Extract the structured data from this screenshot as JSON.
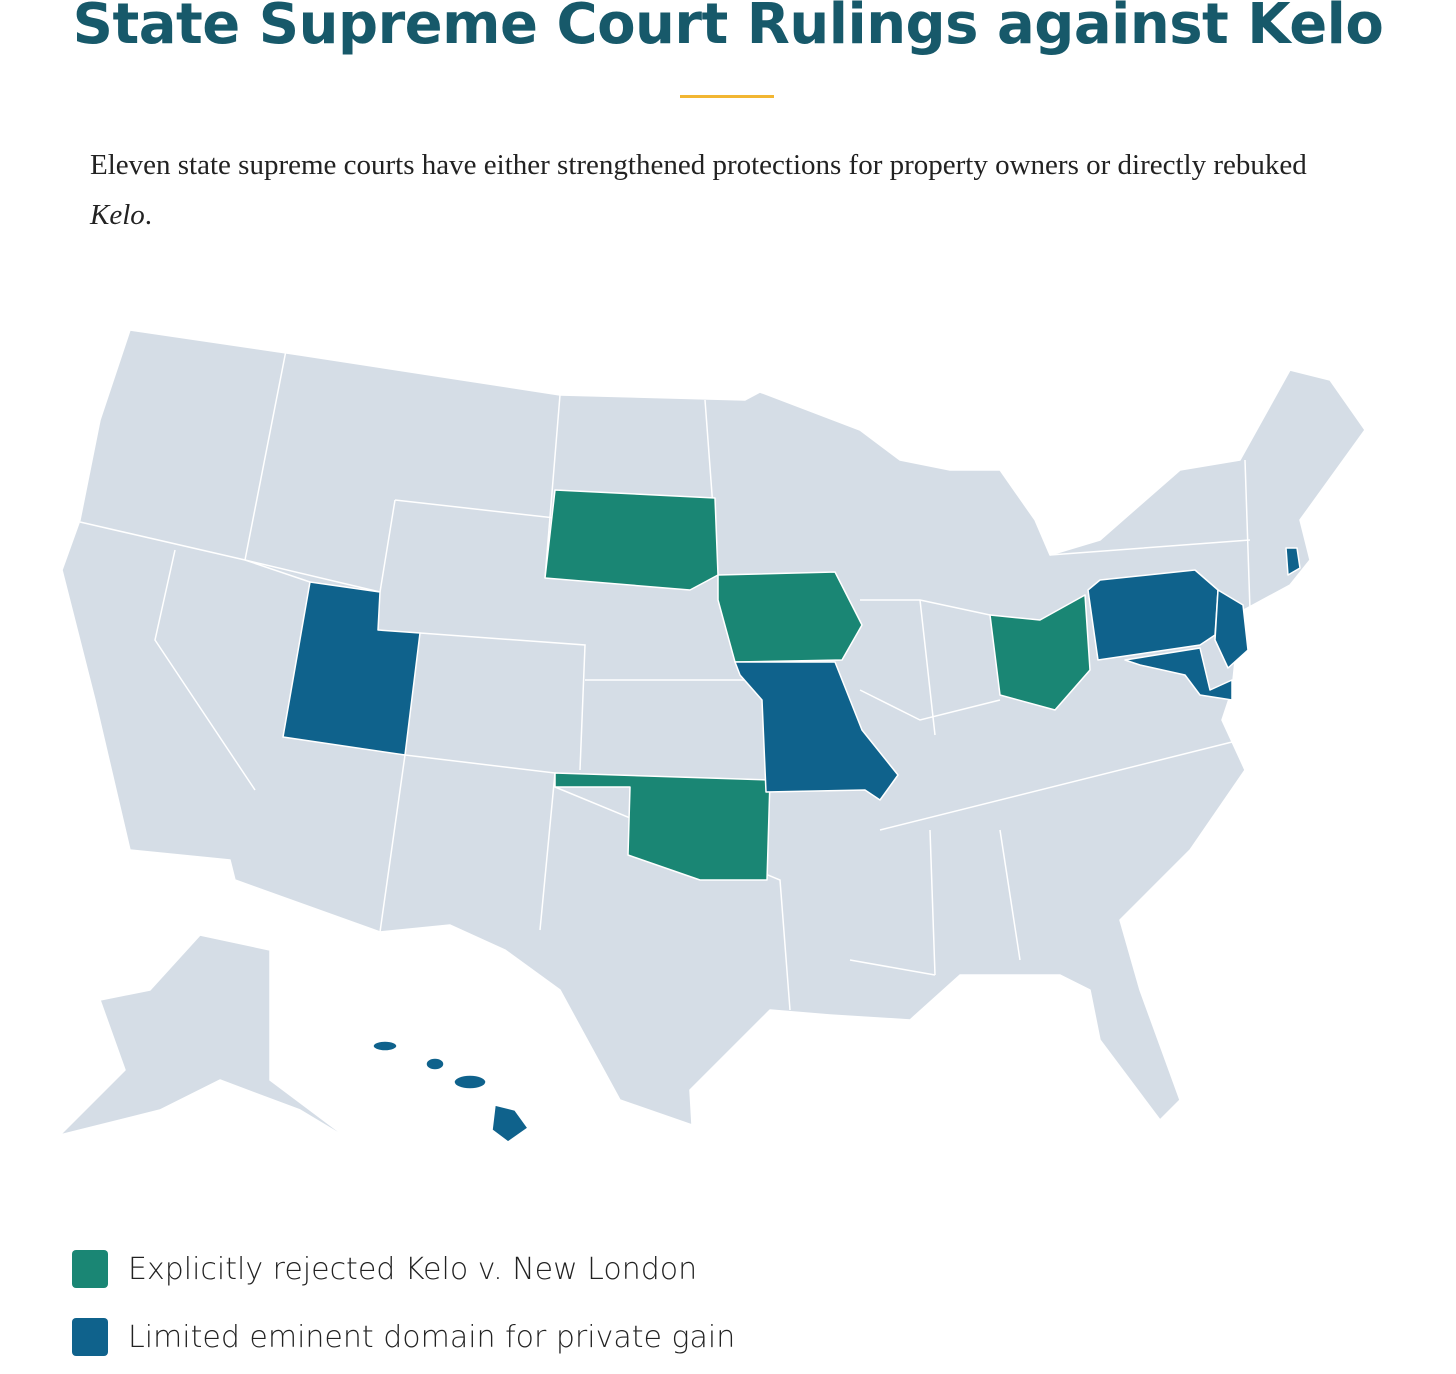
{
  "header": {
    "title": "State Supreme Court Rulings against Kelo"
  },
  "description": {
    "text": "Eleven state supreme courts have either strengthened protections for property owners or directly rebuked ",
    "emphasis": "Kelo",
    "end": "."
  },
  "legend": {
    "items": [
      {
        "label": "Explicitly rejected Kelo v. New London",
        "color": "#1a8674"
      },
      {
        "label": "Limited eminent domain for private gain",
        "color": "#0f628c"
      }
    ]
  }
}
